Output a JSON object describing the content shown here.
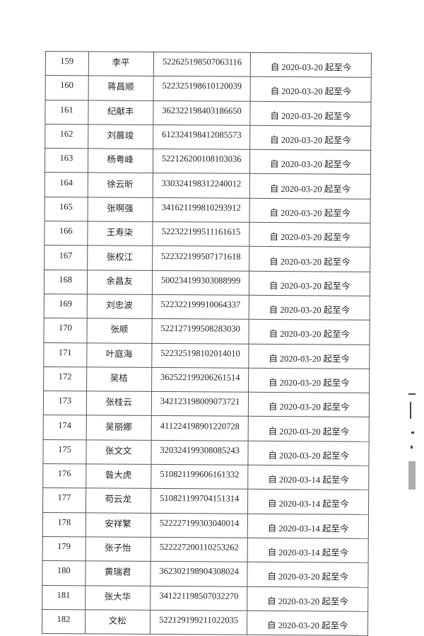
{
  "rows": [
    {
      "no": "159",
      "name": "李平",
      "id": "522625198507063116",
      "period": "自 2020-03-20 起至今"
    },
    {
      "no": "160",
      "name": "蒋昌顺",
      "id": "522325198610120039",
      "period": "自 2020-03-20 起至今"
    },
    {
      "no": "161",
      "name": "纪献丰",
      "id": "362322198403186650",
      "period": "自 2020-03-20 起至今"
    },
    {
      "no": "162",
      "name": "刘晨竣",
      "id": "612324198412085573",
      "period": "自 2020-03-20 起至今"
    },
    {
      "no": "163",
      "name": "杨粤峰",
      "id": "522126200108103036",
      "period": "自 2020-03-20 起至今"
    },
    {
      "no": "164",
      "name": "徐云昕",
      "id": "330324198312240012",
      "period": "自 2020-03-20 起至今"
    },
    {
      "no": "165",
      "name": "张啊强",
      "id": "341621199810293912",
      "period": "自 2020-03-20 起至今"
    },
    {
      "no": "166",
      "name": "王寿柒",
      "id": "522322199511161615",
      "period": "自 2020-03-20 起至今"
    },
    {
      "no": "167",
      "name": "张权江",
      "id": "522322199507171618",
      "period": "自 2020-03-20 起至今"
    },
    {
      "no": "168",
      "name": "余昌友",
      "id": "500234199303088999",
      "period": "自 2020-03-20 起至今"
    },
    {
      "no": "169",
      "name": "刘忠波",
      "id": "522322199910064337",
      "period": "自 2020-03-20 起至今"
    },
    {
      "no": "170",
      "name": "张顺",
      "id": "522127199508283030",
      "period": "自 2020-03-20 起至今"
    },
    {
      "no": "171",
      "name": "叶庭海",
      "id": "522325198102014010",
      "period": "自 2020-03-20 起至今"
    },
    {
      "no": "172",
      "name": "吴桔",
      "id": "362522199206261514",
      "period": "自 2020-03-20 起至今"
    },
    {
      "no": "173",
      "name": "张桂云",
      "id": "342123198009073721",
      "period": "自 2020-03-20 起至今"
    },
    {
      "no": "174",
      "name": "吴丽娜",
      "id": "411224198901220728",
      "period": "自 2020-03-20 起至今"
    },
    {
      "no": "175",
      "name": "张文文",
      "id": "320324199308085243",
      "period": "自 2020-03-20 起至今"
    },
    {
      "no": "176",
      "name": "昝大虎",
      "id": "510821199606161332",
      "period": "自 2020-03-14 起至今"
    },
    {
      "no": "177",
      "name": "苟云龙",
      "id": "510821199704151314",
      "period": "自 2020-03-14 起至今"
    },
    {
      "no": "178",
      "name": "安祥繁",
      "id": "522227199303040014",
      "period": "自 2020-03-14 起至今"
    },
    {
      "no": "179",
      "name": "张子怡",
      "id": "522227200110253262",
      "period": "自 2020-03-14 起至今"
    },
    {
      "no": "180",
      "name": "黄瑞君",
      "id": "362302198904308024",
      "period": "自 2020-03-20 起至今"
    },
    {
      "no": "181",
      "name": "张大华",
      "id": "341221198507032270",
      "period": "自 2020-03-20 起至今"
    },
    {
      "no": "182",
      "name": "文松",
      "id": "522129199211022035",
      "period": "自 2020-03-20 起至今"
    }
  ]
}
